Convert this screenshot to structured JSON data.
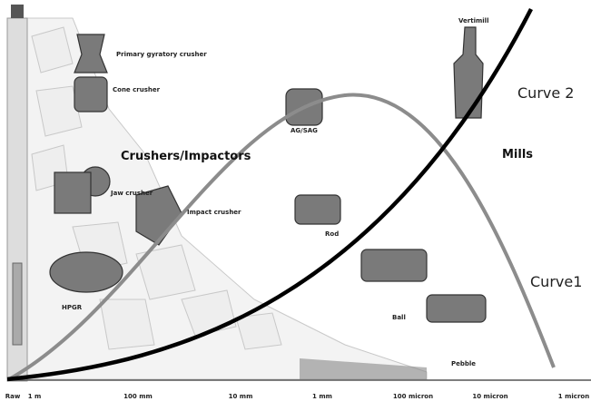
{
  "labels": {
    "gyratory": "Primary gyratory crusher",
    "cone": "Cone crusher",
    "group_crushers": "Crushers/Impactors",
    "jaw": "Jaw crusher",
    "impact": "Impact crusher",
    "hpgr": "HPGR",
    "agsag": "AG/SAG",
    "rod": "Rod",
    "ball": "Ball",
    "pebble": "Pebble",
    "vertimill": "Vertimill",
    "group_mills": "Mills",
    "curve2": "Curve 2",
    "curve1": "Curve1"
  },
  "axis": [
    "Raw",
    "1 m",
    "100 mm",
    "10 mm",
    "1 mm",
    "100 micron",
    "10 micron",
    "1 micron"
  ]
}
